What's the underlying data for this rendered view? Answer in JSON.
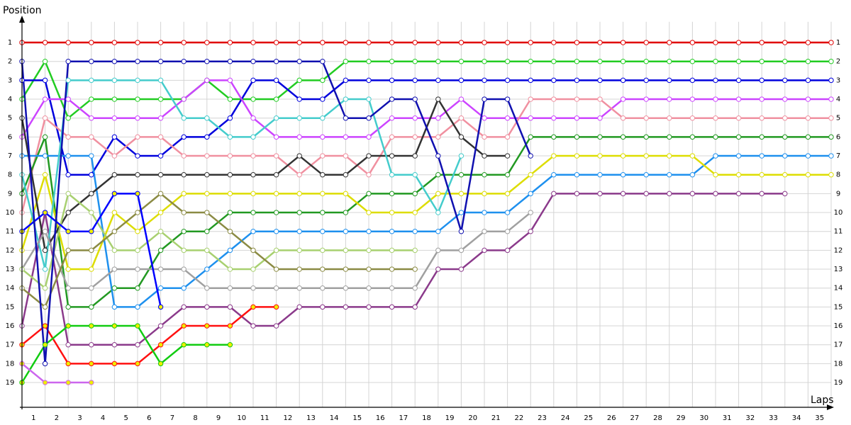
{
  "chart_data": {
    "type": "line",
    "ylabel": "Position",
    "xlabel": "Laps",
    "x": [
      0,
      1,
      2,
      3,
      4,
      5,
      6,
      7,
      8,
      9,
      10,
      11,
      12,
      13,
      14,
      15,
      16,
      17,
      18,
      19,
      20,
      21,
      22,
      23,
      24,
      25,
      26,
      27,
      28,
      29,
      30,
      31,
      32,
      33,
      34,
      35
    ],
    "xlim": [
      0,
      35.3
    ],
    "ylim": [
      -0.1,
      20.3
    ],
    "y_inverted": true,
    "xticks": [
      1,
      2,
      3,
      4,
      5,
      6,
      7,
      8,
      9,
      10,
      11,
      12,
      13,
      14,
      15,
      16,
      17,
      18,
      19,
      20,
      21,
      22,
      23,
      24,
      25,
      26,
      27,
      28,
      29,
      30,
      31,
      32,
      33,
      34,
      35
    ],
    "yticks": [
      1,
      2,
      3,
      4,
      5,
      6,
      7,
      8,
      9,
      10,
      11,
      12,
      13,
      14,
      15,
      16,
      17,
      18,
      19
    ],
    "grid": true,
    "series": [
      {
        "color": "#e00000",
        "marker_fill": "#ffffff",
        "values": [
          1,
          1,
          1,
          1,
          1,
          1,
          1,
          1,
          1,
          1,
          1,
          1,
          1,
          1,
          1,
          1,
          1,
          1,
          1,
          1,
          1,
          1,
          1,
          1,
          1,
          1,
          1,
          1,
          1,
          1,
          1,
          1,
          1,
          1,
          1,
          1
        ]
      },
      {
        "color": "#22cc22",
        "marker_fill": "#ffffff",
        "values": [
          4,
          2,
          5,
          4,
          4,
          4,
          4,
          4,
          3,
          4,
          4,
          4,
          3,
          3,
          2,
          2,
          2,
          2,
          2,
          2,
          2,
          2,
          2,
          2,
          2,
          2,
          2,
          2,
          2,
          2,
          2,
          2,
          2,
          2,
          2,
          2
        ]
      },
      {
        "color": "#0000dd",
        "marker_fill": "#ffffff",
        "values": [
          3,
          3,
          8,
          8,
          6,
          7,
          7,
          6,
          6,
          5,
          3,
          3,
          4,
          4,
          3,
          3,
          3,
          3,
          3,
          3,
          3,
          3,
          3,
          3,
          3,
          3,
          3,
          3,
          3,
          3,
          3,
          3,
          3,
          3,
          3,
          3
        ]
      },
      {
        "color": "#cc44ff",
        "marker_fill": "#ffffff",
        "values": [
          6,
          4,
          4,
          5,
          5,
          5,
          5,
          4,
          3,
          3,
          5,
          6,
          6,
          6,
          6,
          6,
          5,
          5,
          5,
          4,
          5,
          5,
          5,
          5,
          5,
          5,
          4,
          4,
          4,
          4,
          4,
          4,
          4,
          4,
          4,
          4
        ]
      },
      {
        "color": "#f090a0",
        "marker_fill": "#ffffff",
        "values": [
          10,
          5,
          6,
          6,
          7,
          6,
          6,
          7,
          7,
          7,
          7,
          7,
          8,
          7,
          7,
          8,
          6,
          6,
          6,
          5,
          6,
          6,
          4,
          4,
          4,
          4,
          5,
          5,
          5,
          5,
          5,
          5,
          5,
          5,
          5,
          5
        ]
      },
      {
        "color": "#229922",
        "marker_fill": "#ffffff",
        "values": [
          9,
          6,
          15,
          15,
          14,
          14,
          12,
          11,
          11,
          10,
          10,
          10,
          10,
          10,
          10,
          9,
          9,
          9,
          8,
          8,
          8,
          8,
          6,
          6,
          6,
          6,
          6,
          6,
          6,
          6,
          6,
          6,
          6,
          6,
          6,
          6
        ]
      },
      {
        "color": "#1e90ee",
        "marker_fill": "#ffffff",
        "values": [
          7,
          7,
          7,
          7,
          15,
          15,
          14,
          14,
          13,
          12,
          11,
          11,
          11,
          11,
          11,
          11,
          11,
          11,
          11,
          10,
          10,
          10,
          9,
          8,
          8,
          8,
          8,
          8,
          8,
          8,
          7,
          7,
          7,
          7,
          7,
          7
        ]
      },
      {
        "color": "#dddd00",
        "marker_fill": "#ffffff",
        "values": [
          12,
          8,
          13,
          13,
          10,
          11,
          10,
          9,
          9,
          9,
          9,
          9,
          9,
          9,
          9,
          10,
          10,
          10,
          9,
          9,
          9,
          9,
          8,
          7,
          7,
          7,
          7,
          7,
          7,
          7,
          8,
          8,
          8,
          8,
          8,
          8
        ]
      },
      {
        "color": "#8b3a8b",
        "marker_fill": "#ffffff",
        "values": [
          16,
          10,
          17,
          17,
          17,
          17,
          16,
          15,
          15,
          15,
          16,
          16,
          15,
          15,
          15,
          15,
          15,
          15,
          13,
          13,
          12,
          12,
          11,
          9,
          9,
          9,
          9,
          9,
          9,
          9,
          9,
          9,
          9,
          9,
          null,
          null
        ]
      },
      {
        "color": "#333333",
        "marker_fill": "#ffffff",
        "values": [
          5,
          12,
          10,
          9,
          8,
          8,
          8,
          8,
          8,
          8,
          8,
          8,
          7,
          8,
          8,
          7,
          7,
          7,
          4,
          6,
          7,
          7,
          null,
          null,
          null,
          null,
          null,
          null,
          null,
          null,
          null,
          null,
          null,
          null,
          null,
          null
        ]
      },
      {
        "color": "#44cccc",
        "marker_fill": "#ffffff",
        "values": [
          8,
          13,
          3,
          3,
          3,
          3,
          3,
          5,
          5,
          6,
          6,
          5,
          5,
          5,
          4,
          4,
          8,
          8,
          10,
          7,
          null,
          null,
          null,
          null,
          null,
          null,
          null,
          null,
          null,
          null,
          null,
          null,
          null,
          null,
          null,
          null
        ]
      },
      {
        "color": "#a0a0a0",
        "marker_fill": "#ffffff",
        "values": [
          13,
          11,
          14,
          14,
          13,
          13,
          13,
          13,
          14,
          14,
          14,
          14,
          14,
          14,
          14,
          14,
          14,
          14,
          12,
          12,
          11,
          11,
          10,
          null,
          null,
          null,
          null,
          null,
          null,
          null,
          null,
          null,
          null,
          null,
          null,
          null
        ]
      },
      {
        "color": "#a8d070",
        "marker_fill": "#ffffff",
        "values": [
          13,
          14,
          9,
          10,
          12,
          12,
          11,
          12,
          12,
          13,
          13,
          12,
          12,
          12,
          12,
          12,
          12,
          12,
          null,
          null,
          null,
          null,
          null,
          null,
          null,
          null,
          null,
          null,
          null,
          null,
          null,
          null,
          null,
          null,
          null,
          null
        ]
      },
      {
        "color": "#8b8b44",
        "marker_fill": "#ffffff",
        "values": [
          14,
          15,
          12,
          12,
          11,
          10,
          9,
          10,
          10,
          11,
          12,
          13,
          13,
          13,
          13,
          13,
          13,
          13,
          null,
          null,
          null,
          null,
          null,
          null,
          null,
          null,
          null,
          null,
          null,
          null,
          null,
          null,
          null,
          null,
          null,
          null
        ]
      },
      {
        "color": "#ff1010",
        "marker_fill": "#eeee00",
        "values": [
          17,
          16,
          18,
          18,
          18,
          18,
          17,
          16,
          16,
          16,
          15,
          15,
          null,
          null,
          null,
          null,
          null,
          null,
          null,
          null,
          null,
          null,
          null,
          null,
          null,
          null,
          null,
          null,
          null,
          null,
          null,
          null,
          null,
          null,
          null,
          null
        ]
      },
      {
        "color": "#11cc11",
        "marker_fill": "#eeee00",
        "values": [
          19,
          17,
          16,
          16,
          16,
          16,
          18,
          17,
          17,
          17,
          null,
          null,
          null,
          null,
          null,
          null,
          null,
          null,
          null,
          null,
          null,
          null,
          null,
          null,
          null,
          null,
          null,
          null,
          null,
          null,
          null,
          null,
          null,
          null,
          null,
          null
        ]
      },
      {
        "color": "#0000ff",
        "marker_fill": "#eeee00",
        "values": [
          11,
          10,
          11,
          11,
          9,
          9,
          15,
          null,
          null,
          null,
          null,
          null,
          null,
          null,
          null,
          null,
          null,
          null,
          null,
          null,
          null,
          null,
          null,
          null,
          null,
          null,
          null,
          null,
          null,
          null,
          null,
          null,
          null,
          null,
          null,
          null
        ]
      },
      {
        "color": "#1010b0",
        "marker_fill": "#ffffff",
        "values": [
          2,
          18,
          2,
          2,
          2,
          2,
          2,
          2,
          2,
          2,
          2,
          2,
          2,
          2,
          5,
          5,
          4,
          4,
          7,
          11,
          4,
          4,
          7,
          null,
          null,
          null,
          null,
          null,
          null,
          null,
          null,
          null,
          null,
          null,
          null,
          null
        ]
      },
      {
        "color": "#cc66ee",
        "marker_fill": "#eeee00",
        "values": [
          18,
          19,
          19,
          19,
          null,
          null,
          null,
          null,
          null,
          null,
          null,
          null,
          null,
          null,
          null,
          null,
          null,
          null,
          null,
          null,
          null,
          null,
          null,
          null,
          null,
          null,
          null,
          null,
          null,
          null,
          null,
          null,
          null,
          null,
          null,
          null
        ]
      }
    ]
  }
}
